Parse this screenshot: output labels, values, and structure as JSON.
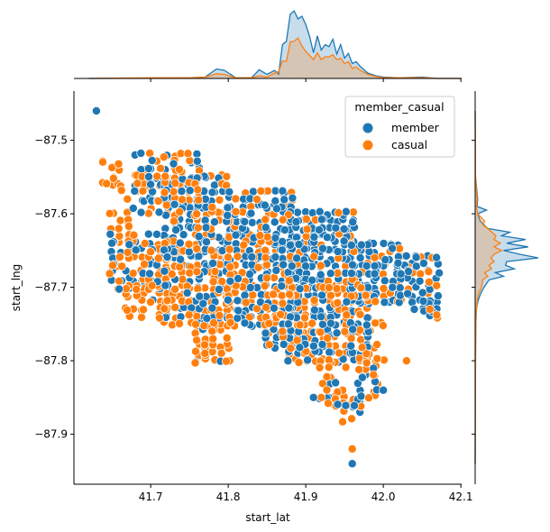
{
  "chart_data": {
    "type": "scatter",
    "kind": "jointplot",
    "title": "",
    "xlabel": "start_lat",
    "ylabel": "start_lng",
    "xlim": [
      41.601,
      42.101
    ],
    "ylim": [
      -87.968,
      -87.433
    ],
    "xticks": [
      41.7,
      41.8,
      41.9,
      42.0,
      42.1
    ],
    "xtick_labels": [
      "41.7",
      "41.8",
      "41.9",
      "42.0",
      "42.1"
    ],
    "yticks": [
      -87.5,
      -87.6,
      -87.7,
      -87.8,
      -87.9
    ],
    "ytick_labels": [
      "−87.5",
      "−87.6",
      "−87.7",
      "−87.8",
      "−87.9"
    ],
    "grid": false,
    "legend": {
      "title": "member_casual",
      "position": "upper right",
      "entries": [
        {
          "label": "member",
          "color": "#1f77b4"
        },
        {
          "label": "casual",
          "color": "#ff7f0e"
        }
      ]
    },
    "series": [
      {
        "name": "member",
        "color": "#1f77b4"
      },
      {
        "name": "casual",
        "color": "#ff7f0e"
      }
    ],
    "regions": [
      {
        "x0": 41.64,
        "x1": 41.66,
        "y0": -87.53,
        "y1": -87.57,
        "fill": 0.6,
        "mix": 0.1
      },
      {
        "x0": 41.65,
        "x1": 41.67,
        "y0": -87.6,
        "y1": -87.62,
        "fill": 0.8,
        "mix": 0.05
      },
      {
        "x0": 41.65,
        "x1": 41.72,
        "y0": -87.63,
        "y1": -87.7,
        "fill": 0.85,
        "mix": 0.45
      },
      {
        "x0": 41.67,
        "x1": 41.72,
        "y0": -87.7,
        "y1": -87.74,
        "fill": 0.8,
        "mix": 0.3
      },
      {
        "x0": 41.68,
        "x1": 41.76,
        "y0": -87.52,
        "y1": -87.6,
        "fill": 0.75,
        "mix": 0.45
      },
      {
        "x0": 41.72,
        "x1": 41.8,
        "y0": -87.55,
        "y1": -87.65,
        "fill": 0.95,
        "mix": 0.6
      },
      {
        "x0": 41.72,
        "x1": 41.8,
        "y0": -87.65,
        "y1": -87.75,
        "fill": 0.95,
        "mix": 0.35
      },
      {
        "x0": 41.76,
        "x1": 41.8,
        "y0": -87.75,
        "y1": -87.8,
        "fill": 0.9,
        "mix": 0.2
      },
      {
        "x0": 41.8,
        "x1": 41.88,
        "y0": -87.57,
        "y1": -87.66,
        "fill": 0.95,
        "mix": 0.7
      },
      {
        "x0": 41.8,
        "x1": 41.88,
        "y0": -87.66,
        "y1": -87.75,
        "fill": 0.95,
        "mix": 0.55
      },
      {
        "x0": 41.85,
        "x1": 41.9,
        "y0": -87.75,
        "y1": -87.78,
        "fill": 0.85,
        "mix": 0.6
      },
      {
        "x0": 41.88,
        "x1": 41.96,
        "y0": -87.6,
        "y1": -87.7,
        "fill": 0.95,
        "mix": 0.75
      },
      {
        "x0": 41.88,
        "x1": 41.98,
        "y0": -87.7,
        "y1": -87.8,
        "fill": 0.95,
        "mix": 0.5
      },
      {
        "x0": 41.92,
        "x1": 41.99,
        "y0": -87.8,
        "y1": -87.86,
        "fill": 0.8,
        "mix": 0.4
      },
      {
        "x0": 41.95,
        "x1": 41.97,
        "y0": -87.86,
        "y1": -87.88,
        "fill": 0.7,
        "mix": 0.5
      },
      {
        "x0": 41.96,
        "x1": 42.02,
        "y0": -87.64,
        "y1": -87.72,
        "fill": 0.9,
        "mix": 0.75
      },
      {
        "x0": 42.02,
        "x1": 42.07,
        "y0": -87.66,
        "y1": -87.72,
        "fill": 0.85,
        "mix": 0.8
      },
      {
        "x0": 42.05,
        "x1": 42.07,
        "y0": -87.72,
        "y1": -87.74,
        "fill": 0.8,
        "mix": 0.4
      },
      {
        "x0": 41.98,
        "x1": 42.0,
        "y0": -87.74,
        "y1": -87.8,
        "fill": 0.6,
        "mix": 0.3
      }
    ],
    "outliers": [
      {
        "x": 41.63,
        "y": -87.46,
        "series": "member"
      },
      {
        "x": 41.96,
        "y": -87.92,
        "series": "casual"
      },
      {
        "x": 41.96,
        "y": -87.94,
        "series": "member"
      },
      {
        "x": 41.91,
        "y": -87.85,
        "series": "member"
      },
      {
        "x": 42.03,
        "y": -87.8,
        "series": "casual"
      },
      {
        "x": 42.0,
        "y": -87.84,
        "series": "member"
      },
      {
        "x": 41.87,
        "y": -87.76,
        "series": "casual"
      },
      {
        "x": 41.77,
        "y": -87.79,
        "series": "casual"
      },
      {
        "x": 41.65,
        "y": -87.64,
        "series": "member"
      },
      {
        "x": 41.67,
        "y": -87.58,
        "series": "casual"
      },
      {
        "x": 41.73,
        "y": -87.61,
        "series": "casual"
      },
      {
        "x": 41.7,
        "y": -87.56,
        "series": "member"
      },
      {
        "x": 42.04,
        "y": -87.73,
        "series": "member"
      },
      {
        "x": 42.06,
        "y": -87.73,
        "series": "casual"
      }
    ],
    "marginal_x_kde": {
      "member": [
        [
          41.62,
          0
        ],
        [
          41.7,
          0.005
        ],
        [
          41.75,
          0.01
        ],
        [
          41.77,
          0.02
        ],
        [
          41.785,
          0.14
        ],
        [
          41.795,
          0.12
        ],
        [
          41.81,
          0.01
        ],
        [
          41.83,
          0.01
        ],
        [
          41.84,
          0.13
        ],
        [
          41.85,
          0.06
        ],
        [
          41.86,
          0.12
        ],
        [
          41.865,
          0.06
        ],
        [
          41.87,
          0.5
        ],
        [
          41.875,
          0.55
        ],
        [
          41.88,
          0.95
        ],
        [
          41.885,
          1.0
        ],
        [
          41.89,
          0.88
        ],
        [
          41.895,
          0.92
        ],
        [
          41.9,
          0.8
        ],
        [
          41.905,
          0.62
        ],
        [
          41.91,
          0.38
        ],
        [
          41.915,
          0.63
        ],
        [
          41.92,
          0.42
        ],
        [
          41.925,
          0.5
        ],
        [
          41.93,
          0.47
        ],
        [
          41.935,
          0.58
        ],
        [
          41.94,
          0.36
        ],
        [
          41.945,
          0.5
        ],
        [
          41.95,
          0.3
        ],
        [
          41.955,
          0.37
        ],
        [
          41.96,
          0.22
        ],
        [
          41.965,
          0.25
        ],
        [
          41.97,
          0.18
        ],
        [
          41.98,
          0.08
        ],
        [
          41.99,
          0.04
        ],
        [
          42.0,
          0.02
        ],
        [
          42.02,
          0.01
        ],
        [
          42.05,
          0.02
        ],
        [
          42.07,
          0
        ],
        [
          42.1,
          0
        ]
      ],
      "casual": [
        [
          41.62,
          0
        ],
        [
          41.7,
          0.01
        ],
        [
          41.75,
          0.01
        ],
        [
          41.77,
          0.02
        ],
        [
          41.785,
          0.07
        ],
        [
          41.795,
          0.06
        ],
        [
          41.81,
          0.01
        ],
        [
          41.83,
          0.01
        ],
        [
          41.84,
          0.04
        ],
        [
          41.85,
          0.02
        ],
        [
          41.86,
          0.08
        ],
        [
          41.865,
          0.1
        ],
        [
          41.87,
          0.26
        ],
        [
          41.875,
          0.25
        ],
        [
          41.88,
          0.54
        ],
        [
          41.885,
          0.55
        ],
        [
          41.89,
          0.6
        ],
        [
          41.895,
          0.48
        ],
        [
          41.9,
          0.4
        ],
        [
          41.905,
          0.34
        ],
        [
          41.91,
          0.28
        ],
        [
          41.915,
          0.38
        ],
        [
          41.92,
          0.28
        ],
        [
          41.925,
          0.32
        ],
        [
          41.93,
          0.32
        ],
        [
          41.935,
          0.35
        ],
        [
          41.94,
          0.28
        ],
        [
          41.945,
          0.3
        ],
        [
          41.95,
          0.22
        ],
        [
          41.955,
          0.25
        ],
        [
          41.96,
          0.15
        ],
        [
          41.965,
          0.17
        ],
        [
          41.97,
          0.12
        ],
        [
          41.98,
          0.06
        ],
        [
          41.99,
          0.03
        ],
        [
          42.0,
          0.01
        ],
        [
          42.05,
          0.01
        ],
        [
          42.07,
          0
        ],
        [
          42.1,
          0
        ]
      ]
    },
    "marginal_y_kde": {
      "member": [
        [
          -87.46,
          0
        ],
        [
          -87.55,
          0.005
        ],
        [
          -87.58,
          0.04
        ],
        [
          -87.59,
          0.03
        ],
        [
          -87.595,
          0.18
        ],
        [
          -87.6,
          0.04
        ],
        [
          -87.61,
          0.08
        ],
        [
          -87.615,
          0.14
        ],
        [
          -87.62,
          0.2
        ],
        [
          -87.625,
          0.55
        ],
        [
          -87.63,
          0.42
        ],
        [
          -87.635,
          0.8
        ],
        [
          -87.64,
          0.5
        ],
        [
          -87.645,
          0.84
        ],
        [
          -87.65,
          0.45
        ],
        [
          -87.655,
          0.7
        ],
        [
          -87.66,
          1.0
        ],
        [
          -87.665,
          0.5
        ],
        [
          -87.67,
          0.48
        ],
        [
          -87.675,
          0.62
        ],
        [
          -87.68,
          0.32
        ],
        [
          -87.685,
          0.45
        ],
        [
          -87.69,
          0.22
        ],
        [
          -87.7,
          0.14
        ],
        [
          -87.71,
          0.08
        ],
        [
          -87.72,
          0.04
        ],
        [
          -87.73,
          0.02
        ],
        [
          -87.75,
          0.01
        ],
        [
          -87.8,
          0.005
        ],
        [
          -87.94,
          0
        ]
      ],
      "casual": [
        [
          -87.46,
          0
        ],
        [
          -87.55,
          0.005
        ],
        [
          -87.58,
          0.03
        ],
        [
          -87.59,
          0.02
        ],
        [
          -87.6,
          0.04
        ],
        [
          -87.61,
          0.15
        ],
        [
          -87.615,
          0.12
        ],
        [
          -87.62,
          0.2
        ],
        [
          -87.63,
          0.33
        ],
        [
          -87.635,
          0.3
        ],
        [
          -87.64,
          0.4
        ],
        [
          -87.645,
          0.3
        ],
        [
          -87.65,
          0.42
        ],
        [
          -87.655,
          0.3
        ],
        [
          -87.66,
          0.25
        ],
        [
          -87.665,
          0.3
        ],
        [
          -87.67,
          0.22
        ],
        [
          -87.675,
          0.26
        ],
        [
          -87.68,
          0.15
        ],
        [
          -87.685,
          0.2
        ],
        [
          -87.69,
          0.12
        ],
        [
          -87.7,
          0.1
        ],
        [
          -87.71,
          0.05
        ],
        [
          -87.72,
          0.03
        ],
        [
          -87.74,
          0.01
        ],
        [
          -87.8,
          0.005
        ],
        [
          -87.94,
          0
        ]
      ]
    }
  }
}
